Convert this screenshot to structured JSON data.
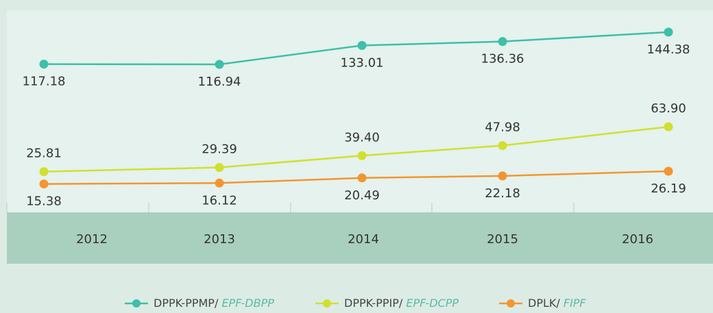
{
  "chart_data": {
    "type": "line",
    "categories": [
      "2012",
      "2013",
      "2014",
      "2015",
      "2016"
    ],
    "series": [
      {
        "name": "DPPK-PPMP/ EPF-DBPP",
        "color": "#3dbfa8",
        "values": [
          117.18,
          116.94,
          133.01,
          136.36,
          144.38
        ],
        "value_labels": [
          "117.18",
          "116.94",
          "133.01",
          "136.36",
          "144.38"
        ]
      },
      {
        "name": "DPPK-PPIP/ EPF-DCPP",
        "color": "#d2df2e",
        "values": [
          25.81,
          29.39,
          39.4,
          47.98,
          63.9
        ],
        "value_labels": [
          "25.81",
          "29.39",
          "39.40",
          "47.98",
          "63.90"
        ]
      },
      {
        "name": "DPLK/ FIPF",
        "color": "#f39530",
        "values": [
          15.38,
          16.12,
          20.49,
          22.18,
          26.19
        ],
        "value_labels": [
          "15.38",
          "16.12",
          "20.49",
          "22.18",
          "26.19"
        ]
      }
    ],
    "ylim": [
      0,
      160
    ]
  }
}
